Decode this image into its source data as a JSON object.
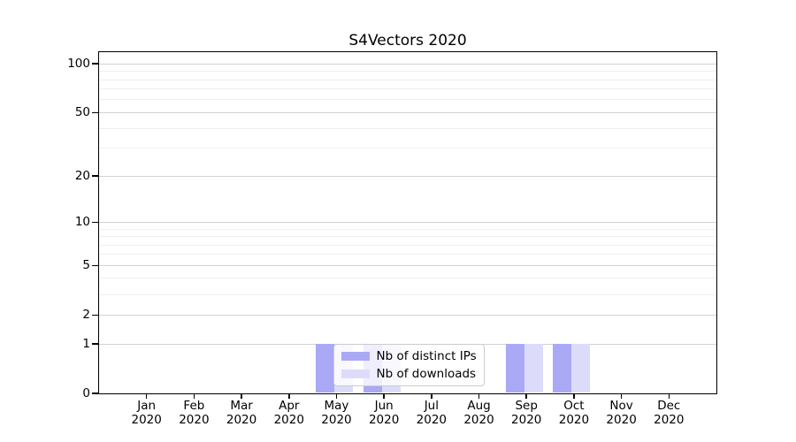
{
  "title": "S4Vectors 2020",
  "legend": {
    "items": [
      {
        "label": "Nb of distinct IPs",
        "color": "#a9a9f5"
      },
      {
        "label": "Nb of downloads",
        "color": "#dcdcfa"
      }
    ]
  },
  "y_axis": {
    "major_ticks": [
      100,
      50,
      20,
      10,
      5,
      2,
      1,
      0
    ],
    "minor_ticks": [
      90,
      80,
      70,
      60,
      40,
      30,
      9,
      8,
      7,
      6,
      4,
      3
    ]
  },
  "x_axis": {
    "months": [
      "Jan",
      "Feb",
      "Mar",
      "Apr",
      "May",
      "Jun",
      "Jul",
      "Aug",
      "Sep",
      "Oct",
      "Nov",
      "Dec"
    ],
    "year": "2020"
  },
  "colors": {
    "distinct_ips": "#a9a9f5",
    "downloads": "#dcdcfa",
    "grid_major": "#d2d2d2",
    "grid_minor": "#efefef",
    "spine": "#000000"
  },
  "chart_data": {
    "type": "bar",
    "title": "S4Vectors 2020",
    "categories": [
      "Jan 2020",
      "Feb 2020",
      "Mar 2020",
      "Apr 2020",
      "May 2020",
      "Jun 2020",
      "Jul 2020",
      "Aug 2020",
      "Sep 2020",
      "Oct 2020",
      "Nov 2020",
      "Dec 2020"
    ],
    "series": [
      {
        "name": "Nb of distinct IPs",
        "color": "#a9a9f5",
        "values": [
          0,
          0,
          0,
          0,
          1,
          1,
          0,
          0,
          1,
          1,
          0,
          0
        ]
      },
      {
        "name": "Nb of downloads",
        "color": "#dcdcfa",
        "values": [
          0,
          0,
          0,
          0,
          1,
          1,
          0,
          0,
          1,
          1,
          0,
          0
        ]
      }
    ],
    "xlabel": "",
    "ylabel": "",
    "yscale": "log1p",
    "ylim": [
      0,
      120
    ],
    "ytick_values": [
      100,
      50,
      20,
      10,
      5,
      2,
      1,
      0
    ],
    "grid": "horizontal, major and minor lines",
    "legend_position": "lower center inside plot"
  }
}
